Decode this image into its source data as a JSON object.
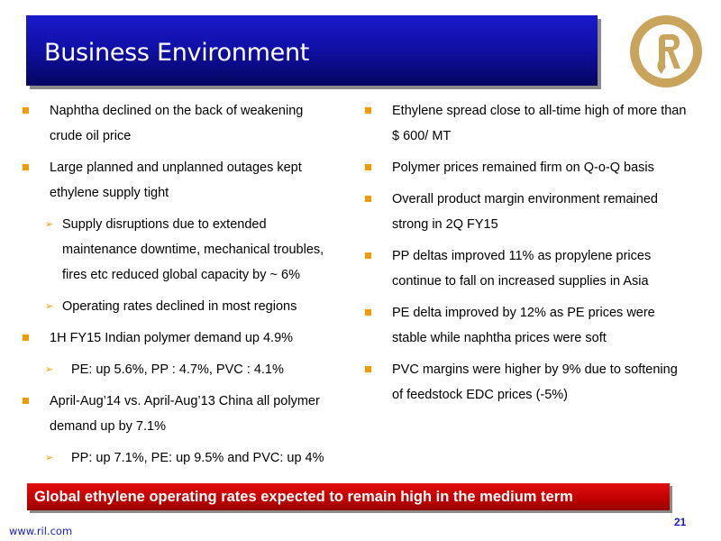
{
  "title": "Business Environment",
  "left": {
    "b1": {
      "l1": "Naphtha declined on the back of weakening",
      "l2": "crude oil price"
    },
    "b2": {
      "l1": "Large planned and unplanned outages kept",
      "l2": "ethylene supply tight"
    },
    "b2s1": {
      "l1": "Supply disruptions due to extended",
      "l2": "maintenance downtime, mechanical troubles,",
      "l3": "fires etc reduced global capacity by ~ 6%"
    },
    "b2s2": "Operating rates declined in most regions",
    "b3": "1H FY15 Indian polymer demand up 4.9%",
    "b3s1": "PE: up 5.6%, PP : 4.7%, PVC : 4.1%",
    "b4": {
      "l1": "April-Aug’14 vs. April-Aug’13 China all polymer",
      "l2": "demand up by 7.1%"
    },
    "b4s1": "PP: up 7.1%, PE: up 9.5% and PVC: up 4%"
  },
  "right": {
    "r1": {
      "l1": "Ethylene spread close to all-time high of more than",
      "l2": "$ 600/ MT"
    },
    "r2": "Polymer prices remained firm on Q-o-Q basis",
    "r3": {
      "l1": "Overall product margin environment remained",
      "l2": "strong in 2Q FY15"
    },
    "r4": {
      "l1": "PP deltas improved 11% as propylene prices",
      "l2": "continue to fall on increased supplies in Asia"
    },
    "r5": {
      "l1": "PE delta improved by 12% as PE prices were",
      "l2": "stable while naphtha prices were soft"
    },
    "r6": {
      "l1": "PVC margins were higher by 9% due to softening",
      "l2": "of feedstock EDC prices (-5%)"
    }
  },
  "banner": "Global ethylene operating rates expected to remain high in the medium term",
  "footer": {
    "url": "www.ril.com",
    "page": "21"
  },
  "colors": {
    "title_bg": "#1010a8",
    "bullet": "#f39a00",
    "banner_bg": "#c00000",
    "logo": "#c9a45c"
  }
}
